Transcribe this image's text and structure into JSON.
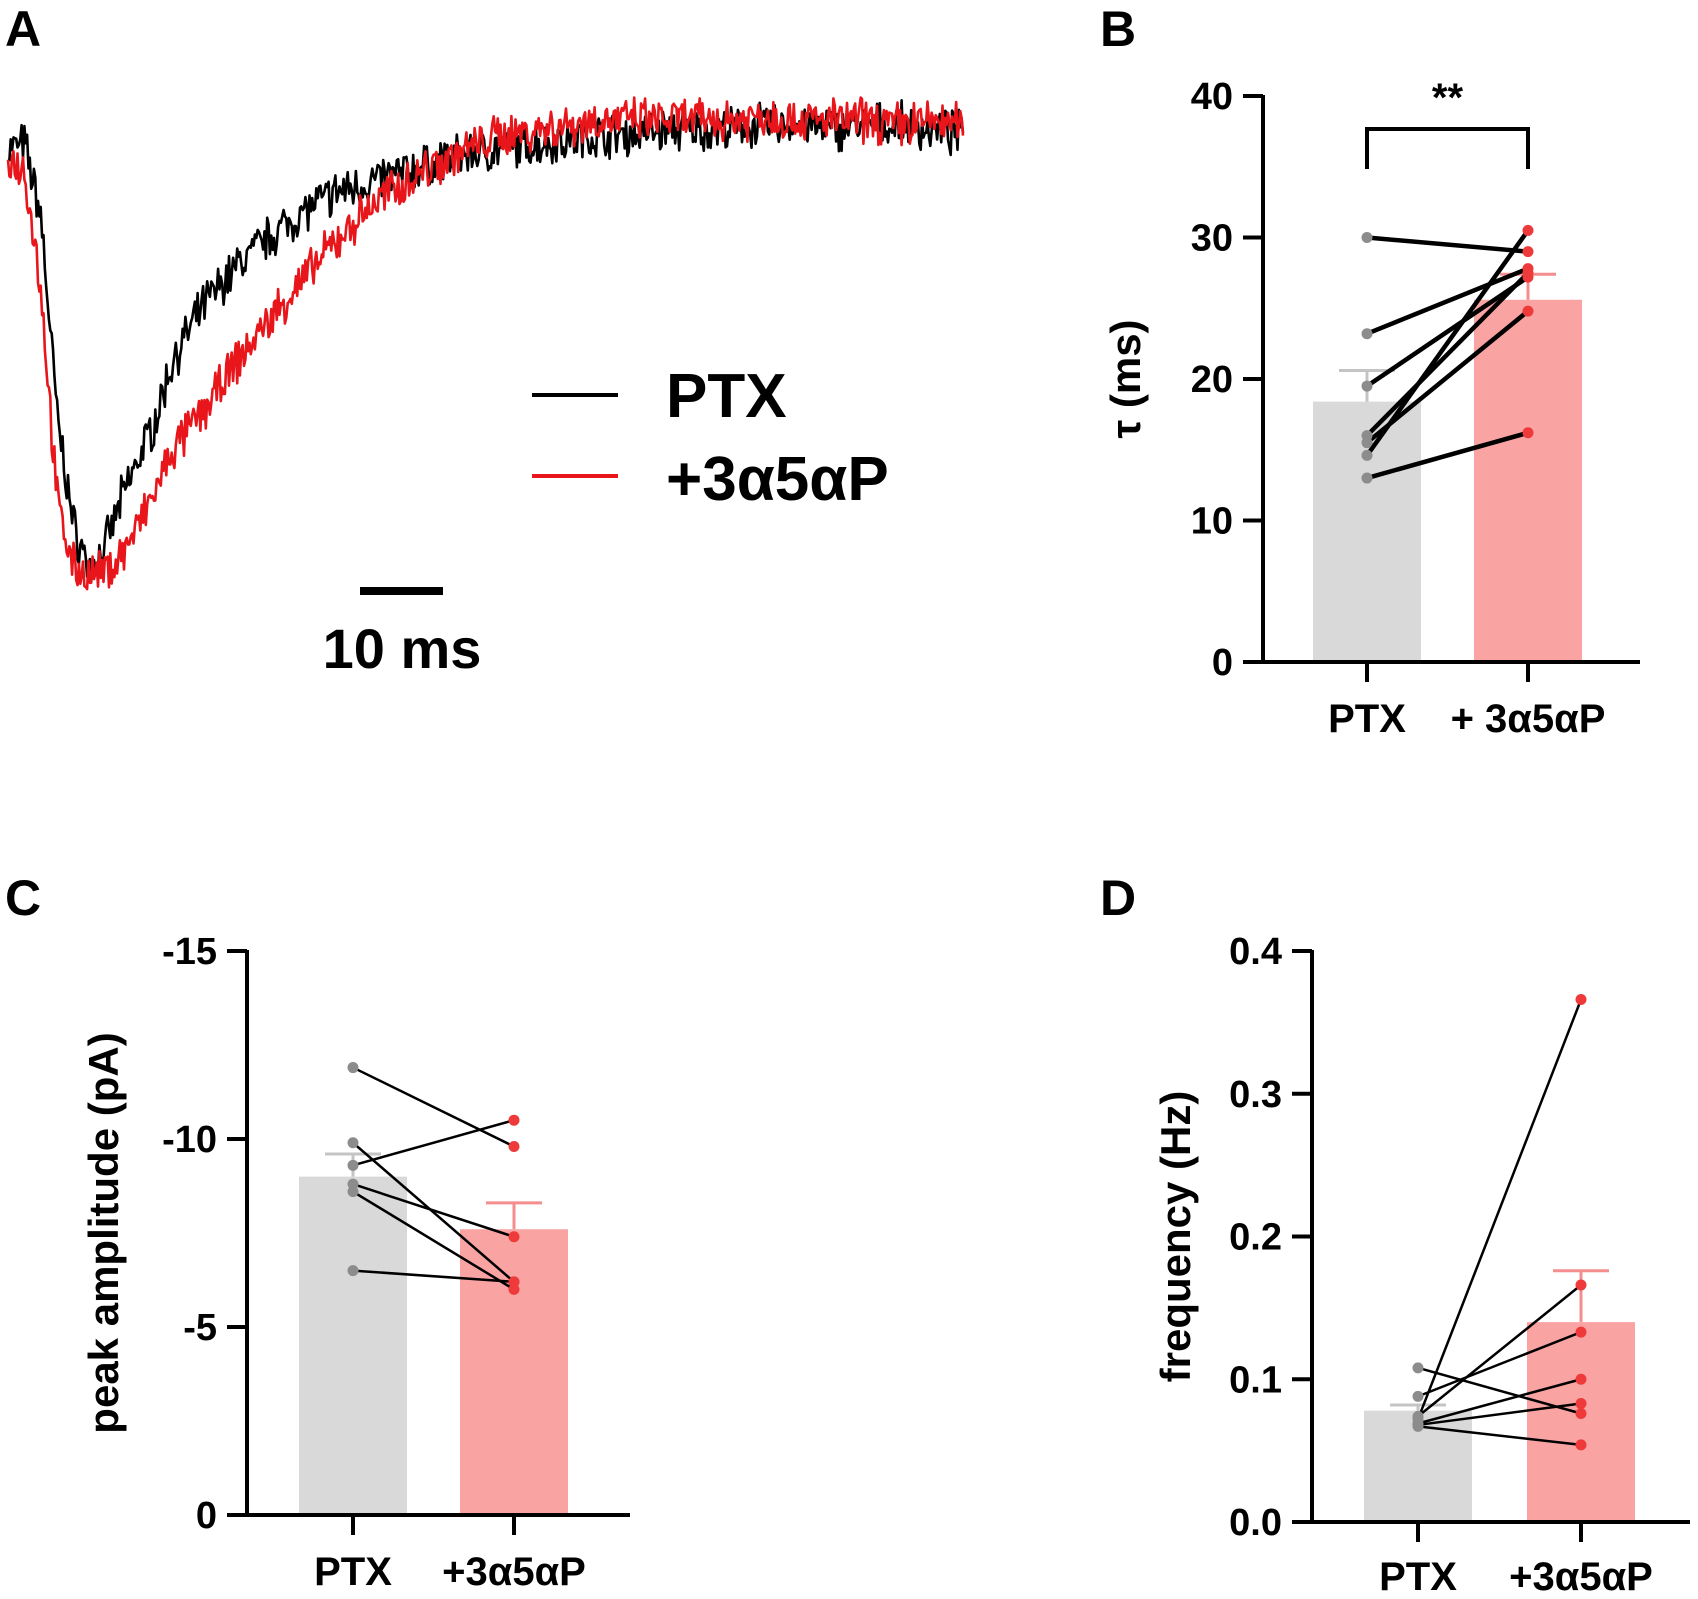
{
  "figure": {
    "panels": [
      "A",
      "B",
      "C",
      "D"
    ],
    "colors": {
      "ptx_trace": "#000000",
      "drug_trace": "#e8151b",
      "ptx_bar": "#d9d9d9",
      "drug_bar": "#f9a3a3",
      "ptx_point": "#8c8c8c",
      "drug_point": "#ee3a3a",
      "ptx_err": "#c4c4c4",
      "drug_err": "#f48e8e",
      "axis": "#000000"
    }
  },
  "chart_data": [
    {
      "panel": "A",
      "type": "line",
      "title": "",
      "legend": [
        {
          "label": "PTX",
          "color": "#000000"
        },
        {
          "label": "+3α5αP",
          "color": "#e8151b"
        }
      ],
      "scale_bar": {
        "label": "10 ms",
        "value_ms": 10
      },
      "series": [
        {
          "name": "PTX",
          "x_ms": [
            0,
            2,
            4,
            6,
            8,
            10,
            12,
            14,
            16,
            18,
            20,
            24,
            28,
            32,
            36,
            40,
            44,
            48,
            52,
            56,
            60,
            64,
            68,
            72,
            76,
            80,
            84,
            88,
            92,
            96,
            100,
            104,
            108,
            112,
            116
          ],
          "y_norm": [
            -0.06,
            -0.05,
            -0.2,
            -0.62,
            -0.85,
            -0.94,
            -0.88,
            -0.78,
            -0.7,
            -0.62,
            -0.5,
            -0.38,
            -0.3,
            -0.24,
            -0.19,
            -0.15,
            -0.13,
            -0.11,
            -0.09,
            -0.07,
            -0.06,
            -0.05,
            -0.04,
            -0.03,
            -0.03,
            -0.02,
            -0.02,
            -0.02,
            -0.01,
            -0.01,
            -0.02,
            -0.01,
            -0.01,
            -0.02,
            -0.03
          ]
        },
        {
          "name": "+3α5αP",
          "x_ms": [
            0,
            2,
            4,
            6,
            8,
            10,
            12,
            14,
            16,
            18,
            20,
            24,
            28,
            32,
            36,
            40,
            44,
            48,
            52,
            56,
            60,
            64,
            68,
            72,
            76,
            80,
            84,
            88,
            92,
            96,
            100,
            104,
            108,
            112,
            116
          ],
          "y_norm": [
            -0.08,
            -0.1,
            -0.35,
            -0.8,
            -0.93,
            -0.95,
            -0.94,
            -0.9,
            -0.84,
            -0.77,
            -0.69,
            -0.6,
            -0.5,
            -0.41,
            -0.33,
            -0.25,
            -0.18,
            -0.13,
            -0.09,
            -0.06,
            -0.03,
            -0.02,
            -0.01,
            0.0,
            0.0,
            0.0,
            0.0,
            0.0,
            0.01,
            0.0,
            0.0,
            0.0,
            -0.01,
            0.0,
            -0.01
          ]
        }
      ]
    },
    {
      "panel": "B",
      "type": "bar",
      "categories": [
        "PTX",
        "+ 3α5αP"
      ],
      "ylabel": "τ (ms)",
      "xlabel": "",
      "ylim": [
        0,
        40
      ],
      "yticks": [
        "0",
        "10",
        "20",
        "30",
        "40"
      ],
      "ytick_values": [
        0,
        10,
        20,
        30,
        40
      ],
      "means": [
        18.4,
        25.6
      ],
      "sem": [
        2.2,
        1.8
      ],
      "paired": [
        [
          30.0,
          29.0
        ],
        [
          23.2,
          27.8
        ],
        [
          19.5,
          27.2
        ],
        [
          16.0,
          27.5
        ],
        [
          15.5,
          24.8
        ],
        [
          14.6,
          30.5
        ],
        [
          13.0,
          16.2
        ]
      ],
      "significance": "**"
    },
    {
      "panel": "C",
      "type": "bar",
      "categories": [
        "PTX",
        "+3α5αP"
      ],
      "ylabel": "peak amplitude (pA)",
      "xlabel": "",
      "ylim": [
        0,
        -15
      ],
      "yticks": [
        "0",
        "-5",
        "-10",
        "-15"
      ],
      "ytick_values": [
        0,
        -5,
        -10,
        -15
      ],
      "means": [
        -9.0,
        -7.6
      ],
      "sem": [
        0.6,
        0.7
      ],
      "paired": [
        [
          -11.9,
          -9.8
        ],
        [
          -9.9,
          -6.2
        ],
        [
          -9.3,
          -10.5
        ],
        [
          -8.8,
          -7.4
        ],
        [
          -8.6,
          -6.0
        ],
        [
          -6.5,
          -6.2
        ]
      ]
    },
    {
      "panel": "D",
      "type": "bar",
      "categories": [
        "PTX",
        "+3α5αP"
      ],
      "ylabel": "frequency (Hz)",
      "xlabel": "",
      "ylim": [
        0,
        0.4
      ],
      "yticks": [
        "0.0",
        "0.1",
        "0.2",
        "0.3",
        "0.4"
      ],
      "ytick_values": [
        0,
        0.1,
        0.2,
        0.3,
        0.4
      ],
      "means": [
        0.078,
        0.14
      ],
      "sem": [
        0.004,
        0.036
      ],
      "paired": [
        [
          0.108,
          0.076
        ],
        [
          0.088,
          0.133
        ],
        [
          0.074,
          0.166
        ],
        [
          0.072,
          0.366
        ],
        [
          0.069,
          0.1
        ],
        [
          0.068,
          0.083
        ],
        [
          0.067,
          0.054
        ]
      ]
    }
  ]
}
